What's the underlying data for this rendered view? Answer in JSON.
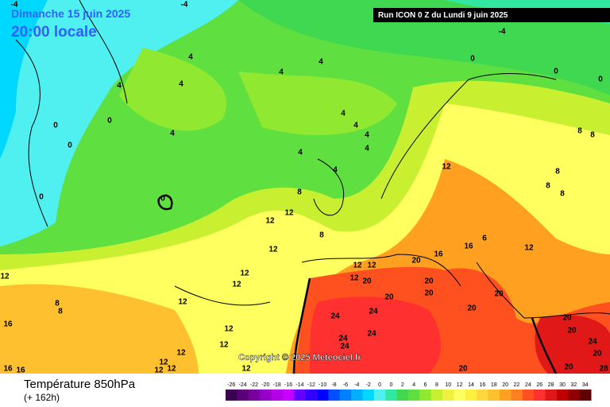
{
  "header": {
    "date": "Dimanche 15 juin 2025",
    "time": "20:00 locale",
    "run": "Run ICON 0 Z du Lundi 9 juin 2025",
    "copyright": "Copyright © 2025 Meteociel.fr"
  },
  "footer": {
    "title": "Température 850hPa",
    "lead": "(+ 162h)"
  },
  "scale": {
    "labels": [
      "-26",
      "-24",
      "-22",
      "-20",
      "-18",
      "-16",
      "-14",
      "-12",
      "-10",
      "-8",
      "-6",
      "-4",
      "-2",
      "0",
      "0",
      "2",
      "4",
      "6",
      "8",
      "10",
      "12",
      "14",
      "16",
      "18",
      "20",
      "22",
      "24",
      "26",
      "28",
      "30",
      "32",
      "34"
    ],
    "colors": [
      "#3c0050",
      "#5a0078",
      "#7800a0",
      "#9600c8",
      "#b400e6",
      "#c800ff",
      "#6400ff",
      "#3200ff",
      "#0000ff",
      "#0050ff",
      "#0080ff",
      "#00b0ff",
      "#00d8ff",
      "#50f0f0",
      "#30e8a0",
      "#40d850",
      "#60e040",
      "#90e830",
      "#c8f030",
      "#f0f040",
      "#ffff60",
      "#fff040",
      "#ffd840",
      "#ffc030",
      "#ffa020",
      "#ff8020",
      "#ff5020",
      "#ff3030",
      "#e01818",
      "#c00000",
      "#900000",
      "#600000"
    ]
  },
  "contour_labels": [
    "-4",
    "-4",
    "-4",
    "0",
    "0",
    "0",
    "4",
    "4",
    "4",
    "4",
    "4",
    "0",
    "0",
    "0",
    "4",
    "4",
    "4",
    "4",
    "4",
    "4",
    "4",
    "0",
    "0",
    "8",
    "12",
    "12",
    "8",
    "12",
    "12",
    "8",
    "8",
    "8",
    "8",
    "8",
    "12",
    "16",
    "16",
    "20",
    "12",
    "12",
    "12",
    "20",
    "20",
    "20",
    "20",
    "20",
    "20",
    "12",
    "12",
    "12",
    "8",
    "8",
    "16",
    "12",
    "24",
    "24",
    "24",
    "24",
    "24",
    "12",
    "12",
    "12",
    "12",
    "12",
    "12",
    "16",
    "16",
    "12",
    "20",
    "20",
    "20",
    "20",
    "24",
    "20",
    "28",
    "6"
  ]
}
